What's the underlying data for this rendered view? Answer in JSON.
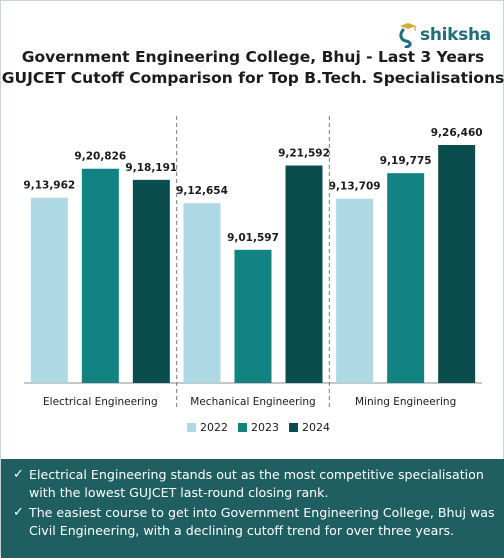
{
  "brand": {
    "name": "shiksha",
    "accent": "#1f6f7a"
  },
  "chart_data": {
    "type": "bar",
    "title": "Government Engineering College, Bhuj - Last 3 Years",
    "subtitle": "GUJCET Cutoff Comparison for Top B.Tech. Specialisations",
    "categories": [
      "Electrical Engineering",
      "Mechanical Engineering",
      "Mining Engineering"
    ],
    "series": [
      {
        "name": "2022",
        "color": "#add8e4",
        "values": [
          913962,
          912654,
          913709
        ],
        "labels": [
          "9,13,962",
          "9,12,654",
          "9,13,709"
        ]
      },
      {
        "name": "2023",
        "color": "#128282",
        "values": [
          920826,
          901597,
          919775
        ],
        "labels": [
          "9,20,826",
          "9,01,597",
          "9,19,775"
        ]
      },
      {
        "name": "2024",
        "color": "#0b4c4c",
        "values": [
          918191,
          921592,
          926460
        ],
        "labels": [
          "9,18,191",
          "9,21,592",
          "9,26,460"
        ]
      }
    ],
    "xlabel": "",
    "ylabel": "",
    "ylim": [
      870000,
      935000
    ],
    "grid": false,
    "legend": "bottom",
    "separators": "dashed"
  },
  "notes": [
    "Electrical Engineering stands out as the most competitive specialisation with the lowest GUJCET last-round closing rank.",
    "The easiest course to get into Government Engineering College, Bhuj was Civil Engineering, with a declining cutoff trend for over three years."
  ],
  "footer_color": "#1f5f62"
}
